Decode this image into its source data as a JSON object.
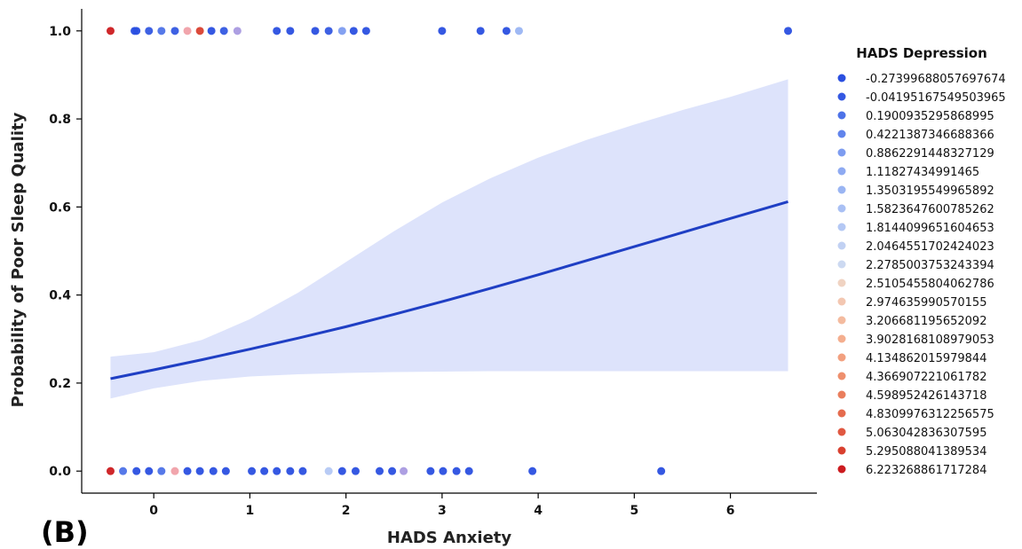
{
  "panel_label": "(B)",
  "chart_data": {
    "type": "scatter",
    "xlabel": "HADS Anxiety",
    "ylabel": "Probability of Poor Sleep Quality",
    "xlim": [
      -0.75,
      6.9
    ],
    "ylim": [
      -0.05,
      1.05
    ],
    "xticks": [
      0,
      1,
      2,
      3,
      4,
      5,
      6
    ],
    "yticks": [
      0.0,
      0.2,
      0.4,
      0.6,
      0.8,
      1.0
    ],
    "ytick_labels": [
      "0.0",
      "0.2",
      "0.4",
      "0.6",
      "0.8",
      "1.0"
    ],
    "grid": false,
    "legend_position": "right",
    "legend_title": "HADS Depression",
    "legend_entries": [
      {
        "label": "-0.27399688057697674",
        "color": "#2a4fe0"
      },
      {
        "label": "-0.04195167549503965",
        "color": "#3458e2"
      },
      {
        "label": "0.1900935295868995",
        "color": "#4d72e8"
      },
      {
        "label": "0.4221387346688366",
        "color": "#6184ec"
      },
      {
        "label": "0.8862291448327129",
        "color": "#7d9cf0"
      },
      {
        "label": "1.11827434991465",
        "color": "#8eaaf2"
      },
      {
        "label": "1.3503195549965892",
        "color": "#9ab5f3"
      },
      {
        "label": "1.5823647600785262",
        "color": "#a9c0f4"
      },
      {
        "label": "1.8144099651604653",
        "color": "#b4c8f4"
      },
      {
        "label": "2.0464551702424023",
        "color": "#c1d1f3"
      },
      {
        "label": "2.2785003753243394",
        "color": "#ccd9f1"
      },
      {
        "label": "2.5105455804062786",
        "color": "#f0d3c2"
      },
      {
        "label": "2.974635990570155",
        "color": "#f3c7b1"
      },
      {
        "label": "3.206681195652092",
        "color": "#f4bb9f"
      },
      {
        "label": "3.9028168108979053",
        "color": "#f4ae8e"
      },
      {
        "label": "4.134862015979844",
        "color": "#f2a07f"
      },
      {
        "label": "4.366907221061782",
        "color": "#ee8f6d"
      },
      {
        "label": "4.598952426143718",
        "color": "#ea7e5d"
      },
      {
        "label": "4.8309976312256575",
        "color": "#e56b4e"
      },
      {
        "label": "5.063042836307595",
        "color": "#e05841"
      },
      {
        "label": "5.295088041389534",
        "color": "#d9402f"
      },
      {
        "label": "6.223268861717284",
        "color": "#cc1b1f"
      }
    ],
    "series": [
      {
        "type": "points",
        "points": [
          {
            "x": -0.45,
            "y": 1,
            "color": "#cc1b1f"
          },
          {
            "x": -0.2,
            "y": 1,
            "color": "#2a4fe0"
          },
          {
            "x": -0.18,
            "y": 1,
            "color": "#2a4fe0"
          },
          {
            "x": -0.05,
            "y": 1,
            "color": "#3458e2"
          },
          {
            "x": 0.08,
            "y": 1,
            "color": "#4d72e8"
          },
          {
            "x": 0.22,
            "y": 1,
            "color": "#3458e2"
          },
          {
            "x": 0.35,
            "y": 1,
            "color": "#f0a0a8"
          },
          {
            "x": 0.48,
            "y": 1,
            "color": "#d9402f"
          },
          {
            "x": 0.6,
            "y": 1,
            "color": "#2a4fe0"
          },
          {
            "x": 0.73,
            "y": 1,
            "color": "#3458e2"
          },
          {
            "x": 0.87,
            "y": 1,
            "color": "#a99ae0"
          },
          {
            "x": 1.28,
            "y": 1,
            "color": "#2a4fe0"
          },
          {
            "x": 1.42,
            "y": 1,
            "color": "#2a4fe0"
          },
          {
            "x": 1.68,
            "y": 1,
            "color": "#2a4fe0"
          },
          {
            "x": 1.82,
            "y": 1,
            "color": "#3458e2"
          },
          {
            "x": 1.96,
            "y": 1,
            "color": "#7d9cf0"
          },
          {
            "x": 2.08,
            "y": 1,
            "color": "#2a4fe0"
          },
          {
            "x": 2.21,
            "y": 1,
            "color": "#2a4fe0"
          },
          {
            "x": 3.0,
            "y": 1,
            "color": "#2a4fe0"
          },
          {
            "x": 3.4,
            "y": 1,
            "color": "#2a4fe0"
          },
          {
            "x": 3.67,
            "y": 1,
            "color": "#2a4fe0"
          },
          {
            "x": 3.8,
            "y": 1,
            "color": "#9ab5f3"
          },
          {
            "x": 6.6,
            "y": 1,
            "color": "#2a4fe0"
          },
          {
            "x": -0.45,
            "y": 0,
            "color": "#cc1b1f"
          },
          {
            "x": -0.32,
            "y": 0,
            "color": "#4d72e8"
          },
          {
            "x": -0.18,
            "y": 0,
            "color": "#2a4fe0"
          },
          {
            "x": -0.05,
            "y": 0,
            "color": "#2a4fe0"
          },
          {
            "x": 0.08,
            "y": 0,
            "color": "#4d72e8"
          },
          {
            "x": 0.22,
            "y": 0,
            "color": "#f0a0a8"
          },
          {
            "x": 0.35,
            "y": 0,
            "color": "#2a4fe0"
          },
          {
            "x": 0.48,
            "y": 0,
            "color": "#2a4fe0"
          },
          {
            "x": 0.62,
            "y": 0,
            "color": "#2a4fe0"
          },
          {
            "x": 0.75,
            "y": 0,
            "color": "#2a4fe0"
          },
          {
            "x": 1.02,
            "y": 0,
            "color": "#2a4fe0"
          },
          {
            "x": 1.15,
            "y": 0,
            "color": "#2a4fe0"
          },
          {
            "x": 1.28,
            "y": 0,
            "color": "#2a4fe0"
          },
          {
            "x": 1.42,
            "y": 0,
            "color": "#2a4fe0"
          },
          {
            "x": 1.55,
            "y": 0,
            "color": "#2a4fe0"
          },
          {
            "x": 1.82,
            "y": 0,
            "color": "#b4c8f4"
          },
          {
            "x": 1.96,
            "y": 0,
            "color": "#2a4fe0"
          },
          {
            "x": 2.1,
            "y": 0,
            "color": "#2a4fe0"
          },
          {
            "x": 2.35,
            "y": 0,
            "color": "#2a4fe0"
          },
          {
            "x": 2.48,
            "y": 0,
            "color": "#2a4fe0"
          },
          {
            "x": 2.6,
            "y": 0,
            "color": "#a99ae0"
          },
          {
            "x": 2.88,
            "y": 0,
            "color": "#2a4fe0"
          },
          {
            "x": 3.01,
            "y": 0,
            "color": "#2a4fe0"
          },
          {
            "x": 3.15,
            "y": 0,
            "color": "#2a4fe0"
          },
          {
            "x": 3.28,
            "y": 0,
            "color": "#2a4fe0"
          },
          {
            "x": 3.94,
            "y": 0,
            "color": "#2a4fe0"
          },
          {
            "x": 5.28,
            "y": 0,
            "color": "#2a4fe0"
          }
        ]
      },
      {
        "type": "line",
        "color": "#1f3fc4",
        "x": [
          -0.45,
          0.0,
          0.5,
          1.0,
          1.5,
          2.0,
          2.5,
          3.0,
          3.5,
          4.0,
          4.5,
          5.0,
          5.5,
          6.0,
          6.6
        ],
        "y": [
          0.21,
          0.23,
          0.253,
          0.277,
          0.302,
          0.328,
          0.356,
          0.385,
          0.415,
          0.446,
          0.478,
          0.51,
          0.542,
          0.574,
          0.612
        ]
      },
      {
        "type": "band",
        "color": "#dde3fb",
        "x": [
          -0.45,
          0.0,
          0.5,
          1.0,
          1.5,
          2.0,
          2.5,
          3.0,
          3.5,
          4.0,
          4.5,
          5.0,
          5.5,
          6.0,
          6.6
        ],
        "lower": [
          0.165,
          0.188,
          0.205,
          0.215,
          0.22,
          0.223,
          0.225,
          0.226,
          0.227,
          0.227,
          0.227,
          0.227,
          0.227,
          0.227,
          0.227
        ],
        "upper": [
          0.26,
          0.27,
          0.298,
          0.345,
          0.405,
          0.475,
          0.545,
          0.61,
          0.665,
          0.712,
          0.752,
          0.787,
          0.82,
          0.85,
          0.89
        ]
      }
    ]
  }
}
